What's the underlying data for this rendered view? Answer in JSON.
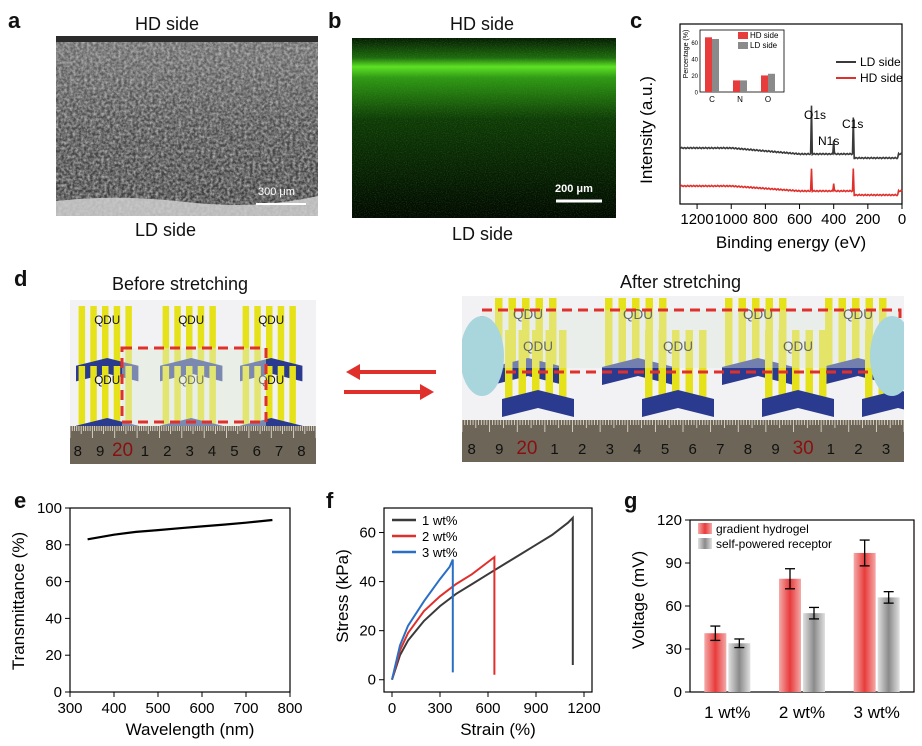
{
  "panels": {
    "a": {
      "letter": "a",
      "top": "HD side",
      "bottom": "LD side",
      "scale": "300 μm"
    },
    "b": {
      "letter": "b",
      "top": "HD side",
      "bottom": "LD side",
      "scale": "200 μm"
    },
    "c": {
      "letter": "c"
    },
    "d": {
      "letter": "d",
      "before": "Before stretching",
      "after": "After stretching",
      "logo": "QDU",
      "ruler_left": [
        "8",
        "9",
        "20",
        "1",
        "2",
        "3",
        "4",
        "5",
        "6",
        "7",
        "8"
      ],
      "ruler_right": [
        "8",
        "9",
        "20",
        "1",
        "2",
        "3",
        "4",
        "5",
        "6",
        "7",
        "8",
        "9",
        "30",
        "1",
        "2",
        "3"
      ]
    },
    "e": {
      "letter": "e"
    },
    "f": {
      "letter": "f"
    },
    "g": {
      "letter": "g"
    }
  },
  "colors": {
    "black_series": "#3a3a3a",
    "red_series": "#e0302c",
    "blue_series": "#2a6fc4",
    "green_fluor": "#4fd81c",
    "ruler": "#6d6658",
    "red_bar": "#e83b3b",
    "gray_bar": "#8a8a8a"
  },
  "chart_data": [
    {
      "id": "c",
      "type": "line",
      "xlabel": "Binding energy (eV)",
      "ylabel": "Intensity (a.u.)",
      "xlim": [
        1300,
        0
      ],
      "xticks": [
        1200,
        1000,
        800,
        600,
        400,
        200,
        0
      ],
      "series": [
        {
          "name": "LD side",
          "peaks_eV": [
            530,
            400,
            284
          ]
        },
        {
          "name": "HD side",
          "peaks_eV": [
            530,
            400,
            284
          ]
        }
      ],
      "annotations": [
        "O1s",
        "N1s",
        "C1s"
      ],
      "inset": {
        "type": "bar",
        "ylabel": "Percentage (%)",
        "categories": [
          "C",
          "N",
          "O"
        ],
        "yticks": [
          0,
          20,
          40,
          60
        ],
        "series": [
          {
            "name": "HD side",
            "values": [
              66,
              14,
              20
            ]
          },
          {
            "name": "LD side",
            "values": [
              64,
              14,
              22
            ]
          }
        ]
      }
    },
    {
      "id": "e",
      "type": "line",
      "xlabel": "Wavelength (nm)",
      "ylabel": "Transmittance (%)",
      "xlim": [
        300,
        800
      ],
      "ylim": [
        0,
        100
      ],
      "xticks": [
        300,
        400,
        500,
        600,
        700,
        800
      ],
      "yticks": [
        0,
        20,
        40,
        60,
        80,
        100
      ],
      "x": [
        340,
        400,
        450,
        500,
        550,
        600,
        650,
        700,
        760
      ],
      "values": [
        83,
        85.5,
        87,
        88,
        89,
        90,
        91,
        92,
        93.5
      ]
    },
    {
      "id": "f",
      "type": "line",
      "xlabel": "Strain (%)",
      "ylabel": "Stress (kPa)",
      "xlim": [
        -50,
        1250
      ],
      "ylim": [
        -5,
        70
      ],
      "xticks": [
        0,
        300,
        600,
        900,
        1200
      ],
      "yticks": [
        0,
        20,
        40,
        60
      ],
      "series": [
        {
          "name": "1 wt%",
          "x": [
            0,
            50,
            100,
            200,
            300,
            400,
            500,
            600,
            700,
            800,
            900,
            1000,
            1100,
            1130,
            1130
          ],
          "values": [
            0,
            10,
            16,
            24,
            30,
            35,
            39,
            43,
            47,
            51,
            55,
            59,
            64,
            66,
            6
          ]
        },
        {
          "name": "2 wt%",
          "x": [
            0,
            50,
            100,
            200,
            300,
            400,
            500,
            600,
            640,
            640
          ],
          "values": [
            0,
            12,
            19,
            28,
            34,
            39,
            43,
            48,
            50,
            2
          ]
        },
        {
          "name": "3 wt%",
          "x": [
            0,
            50,
            100,
            200,
            300,
            360,
            380,
            380
          ],
          "values": [
            0,
            14,
            22,
            32,
            41,
            46,
            49,
            3
          ]
        }
      ]
    },
    {
      "id": "g",
      "type": "bar",
      "ylabel": "Voltage (mV)",
      "ylim": [
        0,
        120
      ],
      "yticks": [
        0,
        30,
        60,
        90,
        120
      ],
      "categories": [
        "1 wt%",
        "2 wt%",
        "3 wt%"
      ],
      "series": [
        {
          "name": "gradient hydrogel",
          "values": [
            41,
            79,
            97
          ],
          "errors": [
            5,
            7,
            9
          ]
        },
        {
          "name": "self-powered receptor",
          "values": [
            34,
            55,
            66
          ],
          "errors": [
            3,
            4,
            4
          ]
        }
      ]
    }
  ]
}
